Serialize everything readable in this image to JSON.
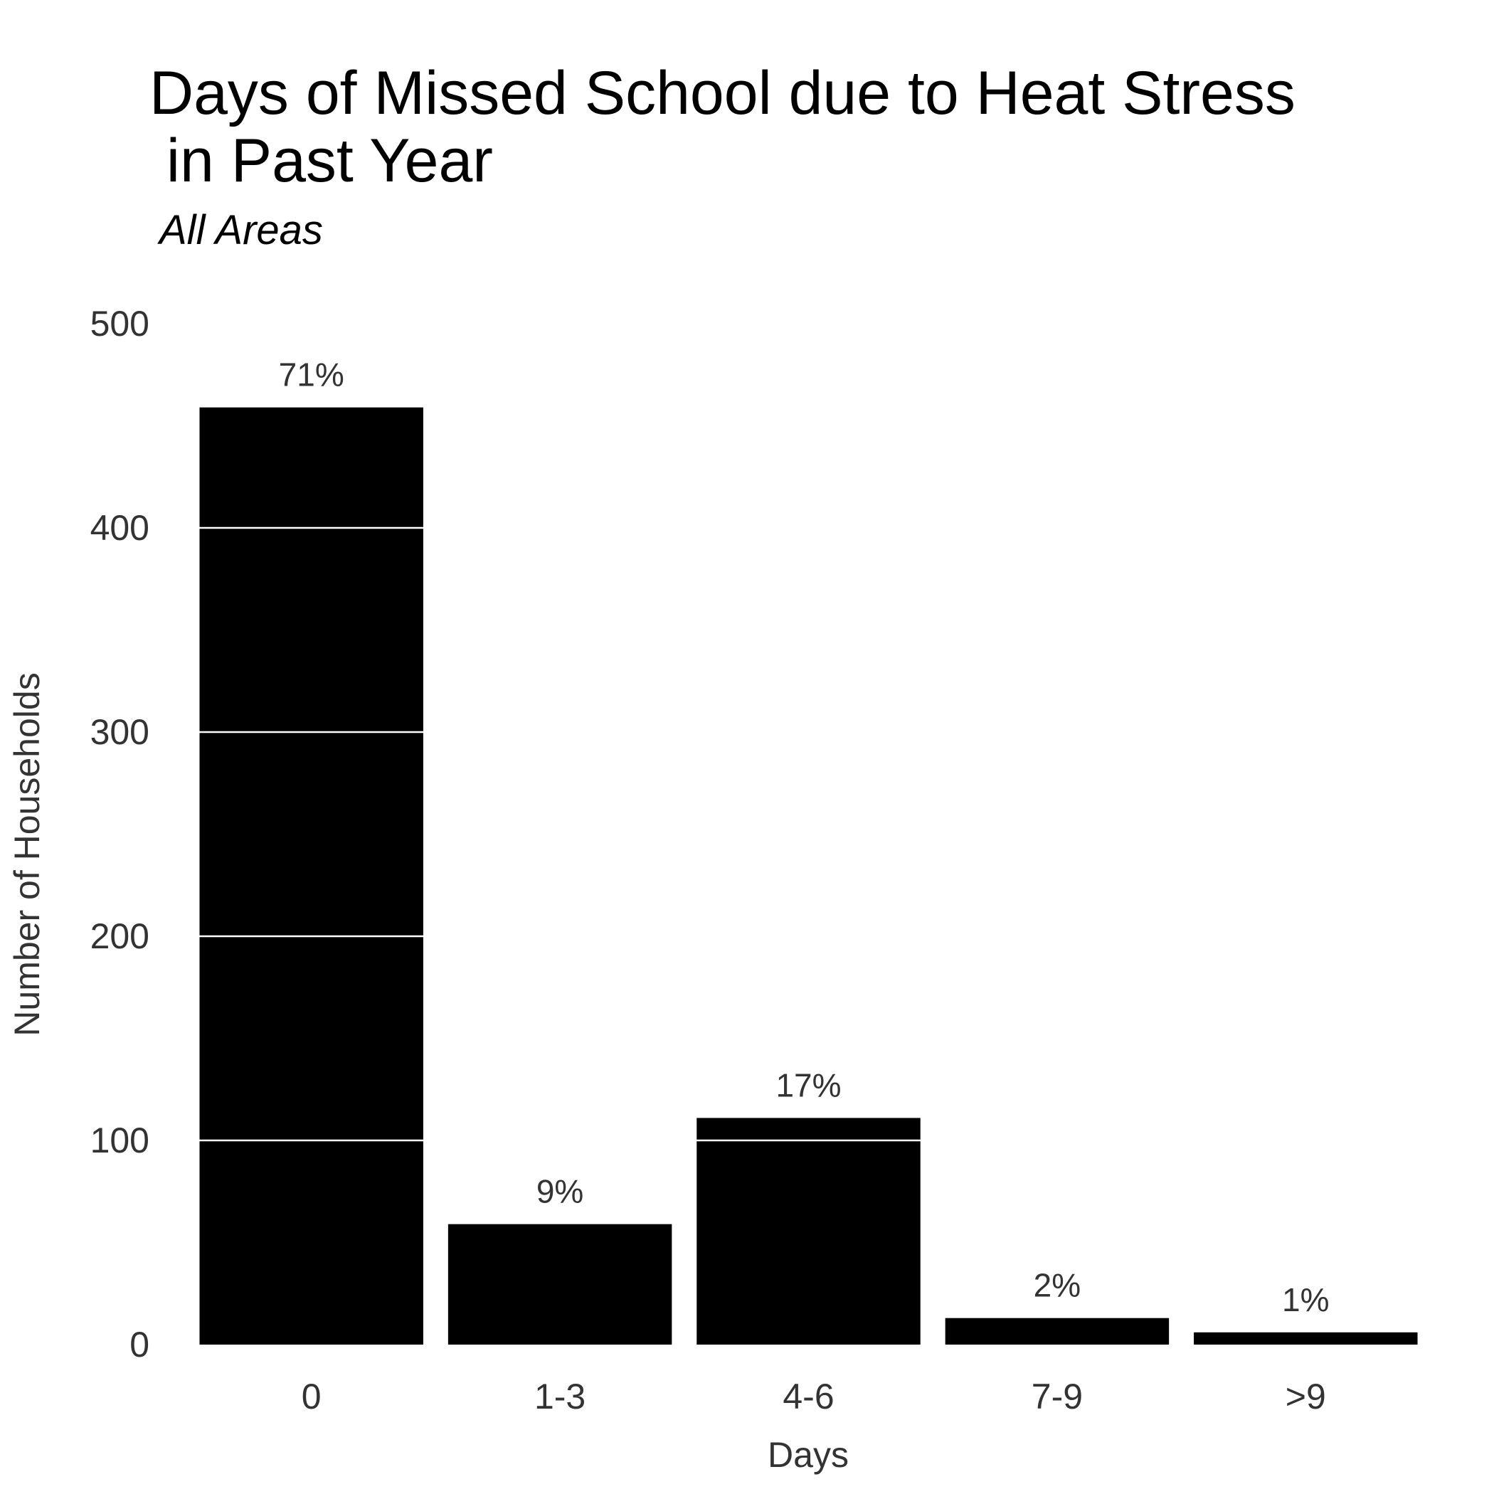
{
  "chart_data": {
    "type": "bar",
    "title_lines": [
      "Days of Missed School due to Heat Stress",
      " in Past Year"
    ],
    "subtitle": "All Areas",
    "xlabel": "Days",
    "ylabel": "Number of Households",
    "categories": [
      "0",
      "1-3",
      "4-6",
      "7-9",
      ">9"
    ],
    "values": [
      459,
      59,
      111,
      13,
      6
    ],
    "labels": [
      "71%",
      "9%",
      "17%",
      "2%",
      "1%"
    ],
    "ylim": [
      0,
      500
    ],
    "yticks": [
      "0",
      "100",
      "200",
      "300",
      "400",
      "500"
    ],
    "bar_color": "#000000",
    "gridline_color": "#ffffff",
    "legend": "none"
  }
}
